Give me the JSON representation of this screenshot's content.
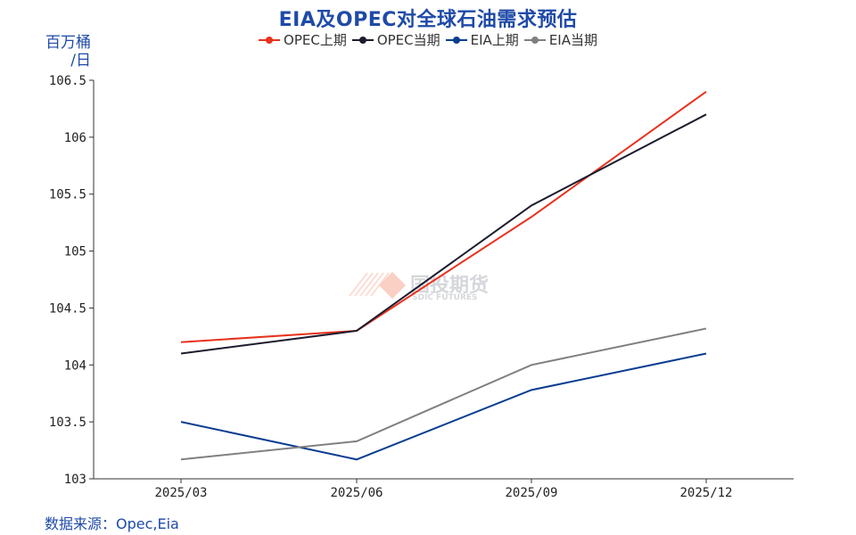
{
  "chart_data": {
    "type": "line",
    "title": "EIA及OPEC对全球石油需求预估",
    "ylabel_line1": "百万桶",
    "ylabel_line2": "/日",
    "categories": [
      "2025/03",
      "2025/06",
      "2025/09",
      "2025/12"
    ],
    "ylim": [
      103,
      106.5
    ],
    "yticks": [
      103,
      103.5,
      104,
      104.5,
      105,
      105.5,
      106,
      106.5
    ],
    "ytick_labels": [
      "103",
      "103.5",
      "104",
      "104.5",
      "105",
      "105.5",
      "106",
      "106.5"
    ],
    "grid": false,
    "legend_position": "top-center",
    "series": [
      {
        "name": "OPEC上期",
        "color": "#e8321e",
        "values": [
          104.2,
          104.3,
          105.3,
          106.4
        ]
      },
      {
        "name": "OPEC当期",
        "color": "#1c1c2e",
        "values": [
          104.1,
          104.3,
          105.4,
          106.2
        ]
      },
      {
        "name": "EIA上期",
        "color": "#0a3d91",
        "values": [
          103.5,
          103.17,
          103.78,
          104.1
        ]
      },
      {
        "name": "EIA当期",
        "color": "#808080",
        "values": [
          103.17,
          103.33,
          104.0,
          104.32
        ]
      }
    ]
  },
  "source": "数据来源：Opec,Eia",
  "watermark": {
    "cn": "国投期货",
    "en": "SDIC FUTURES"
  }
}
